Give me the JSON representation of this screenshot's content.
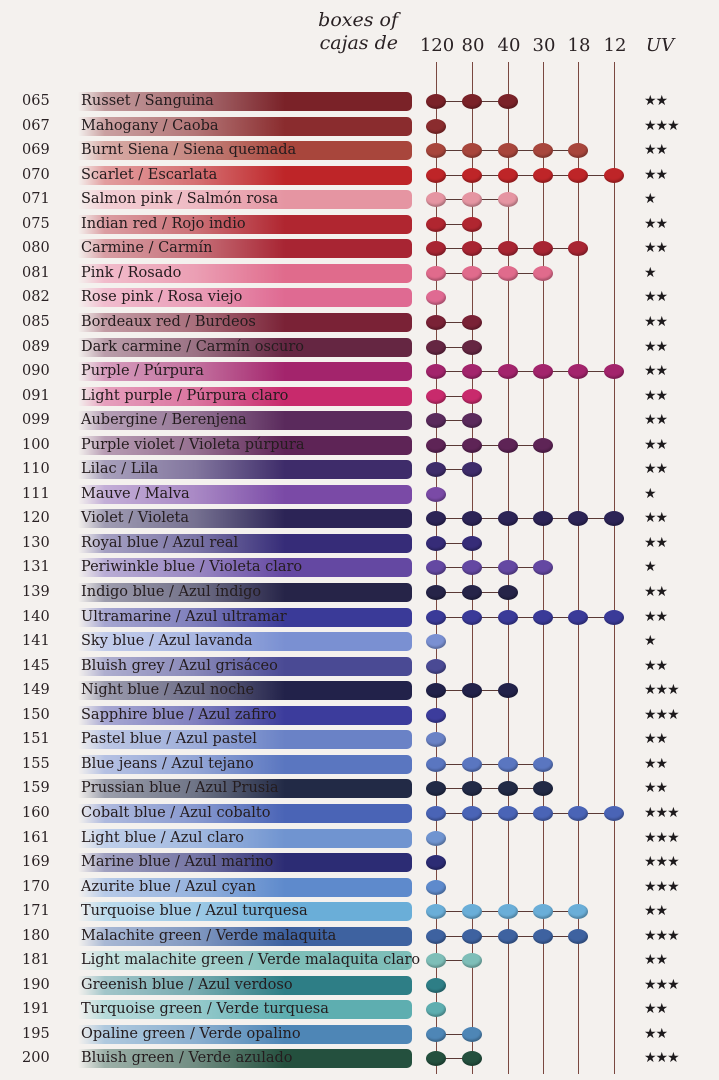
{
  "header": {
    "line1": "boxes of",
    "line2": "cajas de",
    "boxes": [
      "120",
      "80",
      "40",
      "30",
      "18",
      "12"
    ],
    "uv_label": "UV"
  },
  "rows": [
    {
      "code": "065",
      "name": "Russet / Sanguina",
      "color": "#7a2228",
      "boxes": [
        1,
        1,
        1,
        0,
        0,
        0
      ],
      "uv": "★★"
    },
    {
      "code": "067",
      "name": "Mahogany / Caoba",
      "color": "#8a2c2e",
      "boxes": [
        1,
        0,
        0,
        0,
        0,
        0
      ],
      "uv": "★★★"
    },
    {
      "code": "069",
      "name": "Burnt Siena / Siena quemada",
      "color": "#a8463c",
      "boxes": [
        1,
        1,
        1,
        1,
        1,
        0
      ],
      "uv": "★★"
    },
    {
      "code": "070",
      "name": "Scarlet / Escarlata",
      "color": "#be2528",
      "boxes": [
        1,
        1,
        1,
        1,
        1,
        1
      ],
      "uv": "★★"
    },
    {
      "code": "071",
      "name": "Salmon pink / Salmón rosa",
      "color": "#e595a2",
      "boxes": [
        1,
        1,
        1,
        0,
        0,
        0
      ],
      "uv": "★"
    },
    {
      "code": "075",
      "name": "Indian red / Rojo indio",
      "color": "#b02630",
      "boxes": [
        1,
        1,
        0,
        0,
        0,
        0
      ],
      "uv": "★★"
    },
    {
      "code": "080",
      "name": "Carmine / Carmín",
      "color": "#a82533",
      "boxes": [
        1,
        1,
        1,
        1,
        1,
        0
      ],
      "uv": "★★"
    },
    {
      "code": "081",
      "name": "Pink / Rosado",
      "color": "#e06b8c",
      "boxes": [
        1,
        1,
        1,
        1,
        0,
        0
      ],
      "uv": "★"
    },
    {
      "code": "082",
      "name": "Rose pink / Rosa viejo",
      "color": "#df6a92",
      "boxes": [
        1,
        0,
        0,
        0,
        0,
        0
      ],
      "uv": "★★"
    },
    {
      "code": "085",
      "name": "Bordeaux red / Burdeos",
      "color": "#7a2236",
      "boxes": [
        1,
        1,
        0,
        0,
        0,
        0
      ],
      "uv": "★★"
    },
    {
      "code": "089",
      "name": "Dark carmine / Carmín oscuro",
      "color": "#652642",
      "boxes": [
        1,
        1,
        0,
        0,
        0,
        0
      ],
      "uv": "★★"
    },
    {
      "code": "090",
      "name": "Purple / Púrpura",
      "color": "#a3246c",
      "boxes": [
        1,
        1,
        1,
        1,
        1,
        1
      ],
      "uv": "★★"
    },
    {
      "code": "091",
      "name": "Light purple / Púrpura claro",
      "color": "#c82a6c",
      "boxes": [
        1,
        1,
        0,
        0,
        0,
        0
      ],
      "uv": "★★"
    },
    {
      "code": "099",
      "name": "Aubergine / Berenjena",
      "color": "#5a2a5c",
      "boxes": [
        1,
        1,
        0,
        0,
        0,
        0
      ],
      "uv": "★★"
    },
    {
      "code": "100",
      "name": "Purple violet / Violeta púrpura",
      "color": "#5e2456",
      "boxes": [
        1,
        1,
        1,
        1,
        0,
        0
      ],
      "uv": "★★"
    },
    {
      "code": "110",
      "name": "Lilac / Lila",
      "color": "#3e2c6a",
      "boxes": [
        1,
        1,
        0,
        0,
        0,
        0
      ],
      "uv": "★★"
    },
    {
      "code": "111",
      "name": "Mauve / Malva",
      "color": "#7a4aa6",
      "boxes": [
        1,
        0,
        0,
        0,
        0,
        0
      ],
      "uv": "★"
    },
    {
      "code": "120",
      "name": "Violet / Violeta",
      "color": "#2c2456",
      "boxes": [
        1,
        1,
        1,
        1,
        1,
        1
      ],
      "uv": "★★"
    },
    {
      "code": "130",
      "name": "Royal blue / Azul real",
      "color": "#362c78",
      "boxes": [
        1,
        1,
        0,
        0,
        0,
        0
      ],
      "uv": "★★"
    },
    {
      "code": "131",
      "name": "Periwinkle blue / Violeta claro",
      "color": "#6448a2",
      "boxes": [
        1,
        1,
        1,
        1,
        0,
        0
      ],
      "uv": "★"
    },
    {
      "code": "139",
      "name": "Indigo blue / Azul índigo",
      "color": "#262448",
      "boxes": [
        1,
        1,
        1,
        0,
        0,
        0
      ],
      "uv": "★★"
    },
    {
      "code": "140",
      "name": "Ultramarine / Azul ultramar",
      "color": "#3a3a98",
      "boxes": [
        1,
        1,
        1,
        1,
        1,
        1
      ],
      "uv": "★★"
    },
    {
      "code": "141",
      "name": "Sky blue / Azul lavanda",
      "color": "#7a90d2",
      "boxes": [
        1,
        0,
        0,
        0,
        0,
        0
      ],
      "uv": "★"
    },
    {
      "code": "145",
      "name": "Bluish grey / Azul grisáceo",
      "color": "#4a4a94",
      "boxes": [
        1,
        0,
        0,
        0,
        0,
        0
      ],
      "uv": "★★"
    },
    {
      "code": "149",
      "name": "Night blue / Azul noche",
      "color": "#22224a",
      "boxes": [
        1,
        1,
        1,
        0,
        0,
        0
      ],
      "uv": "★★★"
    },
    {
      "code": "150",
      "name": "Sapphire blue / Azul zafiro",
      "color": "#3c3c9c",
      "boxes": [
        1,
        0,
        0,
        0,
        0,
        0
      ],
      "uv": "★★★"
    },
    {
      "code": "151",
      "name": "Pastel blue / Azul pastel",
      "color": "#6a82c6",
      "boxes": [
        1,
        0,
        0,
        0,
        0,
        0
      ],
      "uv": "★★"
    },
    {
      "code": "155",
      "name": "Blue jeans / Azul tejano",
      "color": "#5a76c0",
      "boxes": [
        1,
        1,
        1,
        1,
        0,
        0
      ],
      "uv": "★★"
    },
    {
      "code": "159",
      "name": "Prussian blue / Azul Prusia",
      "color": "#222a46",
      "boxes": [
        1,
        1,
        1,
        1,
        0,
        0
      ],
      "uv": "★★"
    },
    {
      "code": "160",
      "name": "Cobalt blue / Azul cobalto",
      "color": "#4a64b6",
      "boxes": [
        1,
        1,
        1,
        1,
        1,
        1
      ],
      "uv": "★★★"
    },
    {
      "code": "161",
      "name": "Light blue / Azul claro",
      "color": "#7094d0",
      "boxes": [
        1,
        0,
        0,
        0,
        0,
        0
      ],
      "uv": "★★★"
    },
    {
      "code": "169",
      "name": "Marine blue / Azul marino",
      "color": "#2c2c74",
      "boxes": [
        1,
        0,
        0,
        0,
        0,
        0
      ],
      "uv": "★★★"
    },
    {
      "code": "170",
      "name": "Azurite blue / Azul cyan",
      "color": "#5e8acc",
      "boxes": [
        1,
        0,
        0,
        0,
        0,
        0
      ],
      "uv": "★★★"
    },
    {
      "code": "171",
      "name": "Turquoise blue / Azul turquesa",
      "color": "#6aaed8",
      "boxes": [
        1,
        1,
        1,
        1,
        1,
        0
      ],
      "uv": "★★"
    },
    {
      "code": "180",
      "name": "Malachite green / Verde malaquita",
      "color": "#3e62a0",
      "boxes": [
        1,
        1,
        1,
        1,
        1,
        0
      ],
      "uv": "★★★"
    },
    {
      "code": "181",
      "name": "Light malachite green / Verde malaquita claro",
      "color": "#7ebeb8",
      "boxes": [
        1,
        1,
        0,
        0,
        0,
        0
      ],
      "uv": "★★"
    },
    {
      "code": "190",
      "name": "Greenish blue / Azul verdoso",
      "color": "#2e7e86",
      "boxes": [
        1,
        0,
        0,
        0,
        0,
        0
      ],
      "uv": "★★★"
    },
    {
      "code": "191",
      "name": "Turquoise green / Verde turquesa",
      "color": "#5eaeb0",
      "boxes": [
        1,
        0,
        0,
        0,
        0,
        0
      ],
      "uv": "★★"
    },
    {
      "code": "195",
      "name": "Opaline green / Verde opalino",
      "color": "#4e86b6",
      "boxes": [
        1,
        1,
        0,
        0,
        0,
        0
      ],
      "uv": "★★"
    },
    {
      "code": "200",
      "name": "Bluish green / Verde azulado",
      "color": "#24503e",
      "boxes": [
        1,
        1,
        0,
        0,
        0,
        0
      ],
      "uv": "★★★"
    }
  ]
}
